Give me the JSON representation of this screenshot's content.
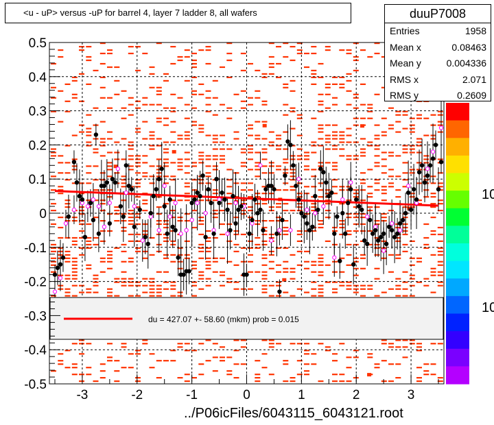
{
  "title": "<u - uP>       versus  -uP for barrel 4, layer 7 ladder 8, all wafers",
  "stats": {
    "name": "duuP7008",
    "rows": [
      {
        "label": "Entries",
        "value": "1958"
      },
      {
        "label": "Mean x",
        "value": "0.08463"
      },
      {
        "label": "Mean y",
        "value": "0.004336"
      },
      {
        "label": "RMS x",
        "value": "2.071"
      },
      {
        "label": "RMS y",
        "value": "0.2609"
      }
    ]
  },
  "footer": "../P06icFiles/6043115_6043121.root",
  "legend_text": "du =  427.07 +- 58.60 (mkm) prob = 0.015",
  "colorbar_labels": [
    "10",
    "10"
  ],
  "colors": {
    "fit": "#ff0000",
    "hist": "#ff3300",
    "mean_pts": "#000000",
    "alt_pts": "#ff00ff"
  },
  "chart_data": {
    "type": "scatter",
    "xlim": [
      -3.6,
      3.6
    ],
    "ylim": [
      -0.5,
      0.5
    ],
    "xticks": [
      "-3",
      "-2",
      "-1",
      "0",
      "1",
      "2",
      "3"
    ],
    "yticks": [
      "0.5",
      "0.4",
      "0.3",
      "0.2",
      "0.1",
      "0",
      "-0.1",
      "-0.2",
      "-0.3",
      "-0.4",
      "-0.5"
    ],
    "grid": true,
    "fit_line": {
      "x": [
        -3.5,
        3.5
      ],
      "y": [
        0.065,
        0.022
      ]
    },
    "mean_points": [
      [
        -3.5,
        -0.18
      ],
      [
        -3.45,
        -0.16
      ],
      [
        -3.4,
        -0.15
      ],
      [
        -3.35,
        -0.13
      ],
      [
        -3.25,
        -0.01
      ],
      [
        -3.15,
        0.15
      ],
      [
        -3.1,
        0.09
      ],
      [
        -3.05,
        0.05
      ],
      [
        -3.0,
        0.04
      ],
      [
        -2.95,
        -0.07
      ],
      [
        -2.85,
        0.03
      ],
      [
        -2.8,
        -0.02
      ],
      [
        -2.75,
        0.23
      ],
      [
        -2.7,
        -0.06
      ],
      [
        -2.65,
        0.08
      ],
      [
        -2.6,
        0.08
      ],
      [
        -2.55,
        0.09
      ],
      [
        -2.5,
        -0.03
      ],
      [
        -2.45,
        0.1
      ],
      [
        -2.4,
        0.09
      ],
      [
        -2.3,
        0.02
      ],
      [
        -2.25,
        -0.01
      ],
      [
        -2.2,
        0.14
      ],
      [
        -2.15,
        0.08
      ],
      [
        -2.1,
        0.07
      ],
      [
        -2.05,
        -0.04
      ],
      [
        -1.95,
        0.01
      ],
      [
        -1.85,
        -0.07
      ],
      [
        -1.8,
        -0.09
      ],
      [
        -1.75,
        0.0
      ],
      [
        -1.7,
        0.05
      ],
      [
        -1.65,
        0.07
      ],
      [
        -1.6,
        0.1
      ],
      [
        -1.55,
        0.13
      ],
      [
        -1.5,
        0.02
      ],
      [
        -1.45,
        -0.06
      ],
      [
        -1.4,
        0.04
      ],
      [
        -1.35,
        -0.04
      ],
      [
        -1.3,
        -0.05
      ],
      [
        -1.25,
        -0.13
      ],
      [
        -1.2,
        -0.18
      ],
      [
        -1.15,
        -0.18
      ],
      [
        -1.1,
        -0.17
      ],
      [
        -1.05,
        -0.17
      ],
      [
        -1.0,
        0.03
      ],
      [
        -0.95,
        0.04
      ],
      [
        -0.9,
        0.06
      ],
      [
        -0.85,
        0.05
      ],
      [
        -0.8,
        0.11
      ],
      [
        -0.75,
        -0.07
      ],
      [
        -0.7,
        0.07
      ],
      [
        -0.65,
        0.03
      ],
      [
        -0.6,
        -0.06
      ],
      [
        -0.55,
        0.1
      ],
      [
        -0.5,
        0.03
      ],
      [
        -0.45,
        0.06
      ],
      [
        -0.4,
        0.04
      ],
      [
        -0.35,
        0.01
      ],
      [
        -0.3,
        -0.05
      ],
      [
        -0.25,
        0.05
      ],
      [
        -0.2,
        -0.03
      ],
      [
        -0.15,
        0.01
      ],
      [
        -0.1,
        0.02
      ],
      [
        -0.05,
        -0.18
      ],
      [
        0.0,
        -0.18
      ],
      [
        0.05,
        -0.06
      ],
      [
        0.1,
        -0.02
      ],
      [
        0.15,
        0.04
      ],
      [
        0.2,
        0.0
      ],
      [
        0.25,
        0.01
      ],
      [
        0.3,
        -0.05
      ],
      [
        0.35,
        0.07
      ],
      [
        0.4,
        0.08
      ],
      [
        0.45,
        0.08
      ],
      [
        0.5,
        0.07
      ],
      [
        0.55,
        -0.06
      ],
      [
        0.6,
        -0.23
      ],
      [
        0.65,
        -0.02
      ],
      [
        0.7,
        0.11
      ],
      [
        0.75,
        0.21
      ],
      [
        0.8,
        0.2
      ],
      [
        0.85,
        0.14
      ],
      [
        0.9,
        0.08
      ],
      [
        0.95,
        0.04
      ],
      [
        1.0,
        0.0
      ],
      [
        1.05,
        -0.01
      ],
      [
        1.1,
        -0.03
      ],
      [
        1.15,
        -0.05
      ],
      [
        1.2,
        -0.04
      ],
      [
        1.25,
        0.05
      ],
      [
        1.3,
        0.01
      ],
      [
        1.35,
        0.13
      ],
      [
        1.4,
        0.12
      ],
      [
        1.45,
        0.09
      ],
      [
        1.5,
        0.05
      ],
      [
        1.55,
        0.06
      ],
      [
        1.6,
        -0.06
      ],
      [
        1.65,
        -0.01
      ],
      [
        1.7,
        -0.14
      ],
      [
        1.75,
        0.0
      ],
      [
        1.8,
        -0.06
      ],
      [
        1.85,
        0.03
      ],
      [
        1.9,
        0.07
      ],
      [
        1.95,
        -0.15
      ],
      [
        2.0,
        0.04
      ],
      [
        2.05,
        0.02
      ],
      [
        2.1,
        0.01
      ],
      [
        2.15,
        -0.08
      ],
      [
        2.2,
        -0.09
      ],
      [
        2.25,
        -0.02
      ],
      [
        2.3,
        -0.06
      ],
      [
        2.35,
        -0.05
      ],
      [
        2.4,
        -0.08
      ],
      [
        2.45,
        -0.07
      ],
      [
        2.5,
        -0.06
      ],
      [
        2.55,
        -0.09
      ],
      [
        2.6,
        -0.04
      ],
      [
        2.65,
        -0.05
      ],
      [
        2.7,
        -0.07
      ],
      [
        2.75,
        -0.06
      ],
      [
        2.8,
        -0.03
      ],
      [
        2.85,
        -0.02
      ],
      [
        2.9,
        0.0
      ],
      [
        2.95,
        0.06
      ],
      [
        3.0,
        0.01
      ],
      [
        3.05,
        0.07
      ],
      [
        3.1,
        0.04
      ],
      [
        3.15,
        0.12
      ],
      [
        3.2,
        0.14
      ],
      [
        3.25,
        0.09
      ],
      [
        3.3,
        0.11
      ],
      [
        3.35,
        0.14
      ],
      [
        3.4,
        0.16
      ],
      [
        3.45,
        0.2
      ],
      [
        3.5,
        0.07
      ],
      [
        3.55,
        0.15
      ]
    ],
    "alt_points": [
      [
        -3.5,
        -0.23
      ],
      [
        -3.4,
        -0.19
      ],
      [
        -3.3,
        -0.03
      ],
      [
        -3.15,
        0.01
      ],
      [
        -3.0,
        0.03
      ],
      [
        -2.9,
        0.02
      ],
      [
        -2.8,
        0.04
      ],
      [
        -2.7,
        0.02
      ],
      [
        -2.6,
        -0.04
      ],
      [
        -2.5,
        0.03
      ],
      [
        -2.35,
        0.13
      ],
      [
        -2.2,
        0.06
      ],
      [
        -2.05,
        0.02
      ],
      [
        -1.9,
        -0.08
      ],
      [
        -1.75,
        -0.01
      ],
      [
        -1.6,
        -0.05
      ],
      [
        -1.5,
        0.08
      ],
      [
        -1.4,
        -0.01
      ],
      [
        -1.3,
        0.03
      ],
      [
        -1.2,
        -0.06
      ],
      [
        -1.1,
        -0.05
      ],
      [
        -1.0,
        -0.02
      ],
      [
        -0.9,
        0.03
      ],
      [
        -0.75,
        0.0
      ],
      [
        -0.6,
        -0.05
      ],
      [
        -0.5,
        0.04
      ],
      [
        -0.35,
        -0.06
      ],
      [
        -0.2,
        0.03
      ],
      [
        -0.05,
        0.02
      ],
      [
        0.1,
        -0.03
      ],
      [
        0.25,
        0.14
      ],
      [
        0.45,
        -0.08
      ],
      [
        0.6,
        -0.05
      ],
      [
        0.8,
        -0.05
      ],
      [
        0.95,
        0.1
      ],
      [
        1.1,
        0.01
      ],
      [
        1.25,
        0.0
      ],
      [
        1.4,
        0.02
      ],
      [
        1.6,
        -0.13
      ],
      [
        1.75,
        0.04
      ],
      [
        1.9,
        0.09
      ],
      [
        2.05,
        0.02
      ],
      [
        2.2,
        -0.01
      ],
      [
        2.35,
        -0.04
      ],
      [
        2.5,
        -0.11
      ],
      [
        2.65,
        -0.03
      ],
      [
        2.8,
        -0.05
      ],
      [
        2.95,
        0.08
      ],
      [
        3.1,
        0.03
      ],
      [
        3.2,
        0.14
      ],
      [
        3.3,
        0.13
      ],
      [
        3.4,
        0.18
      ],
      [
        3.55,
        0.25
      ]
    ]
  }
}
